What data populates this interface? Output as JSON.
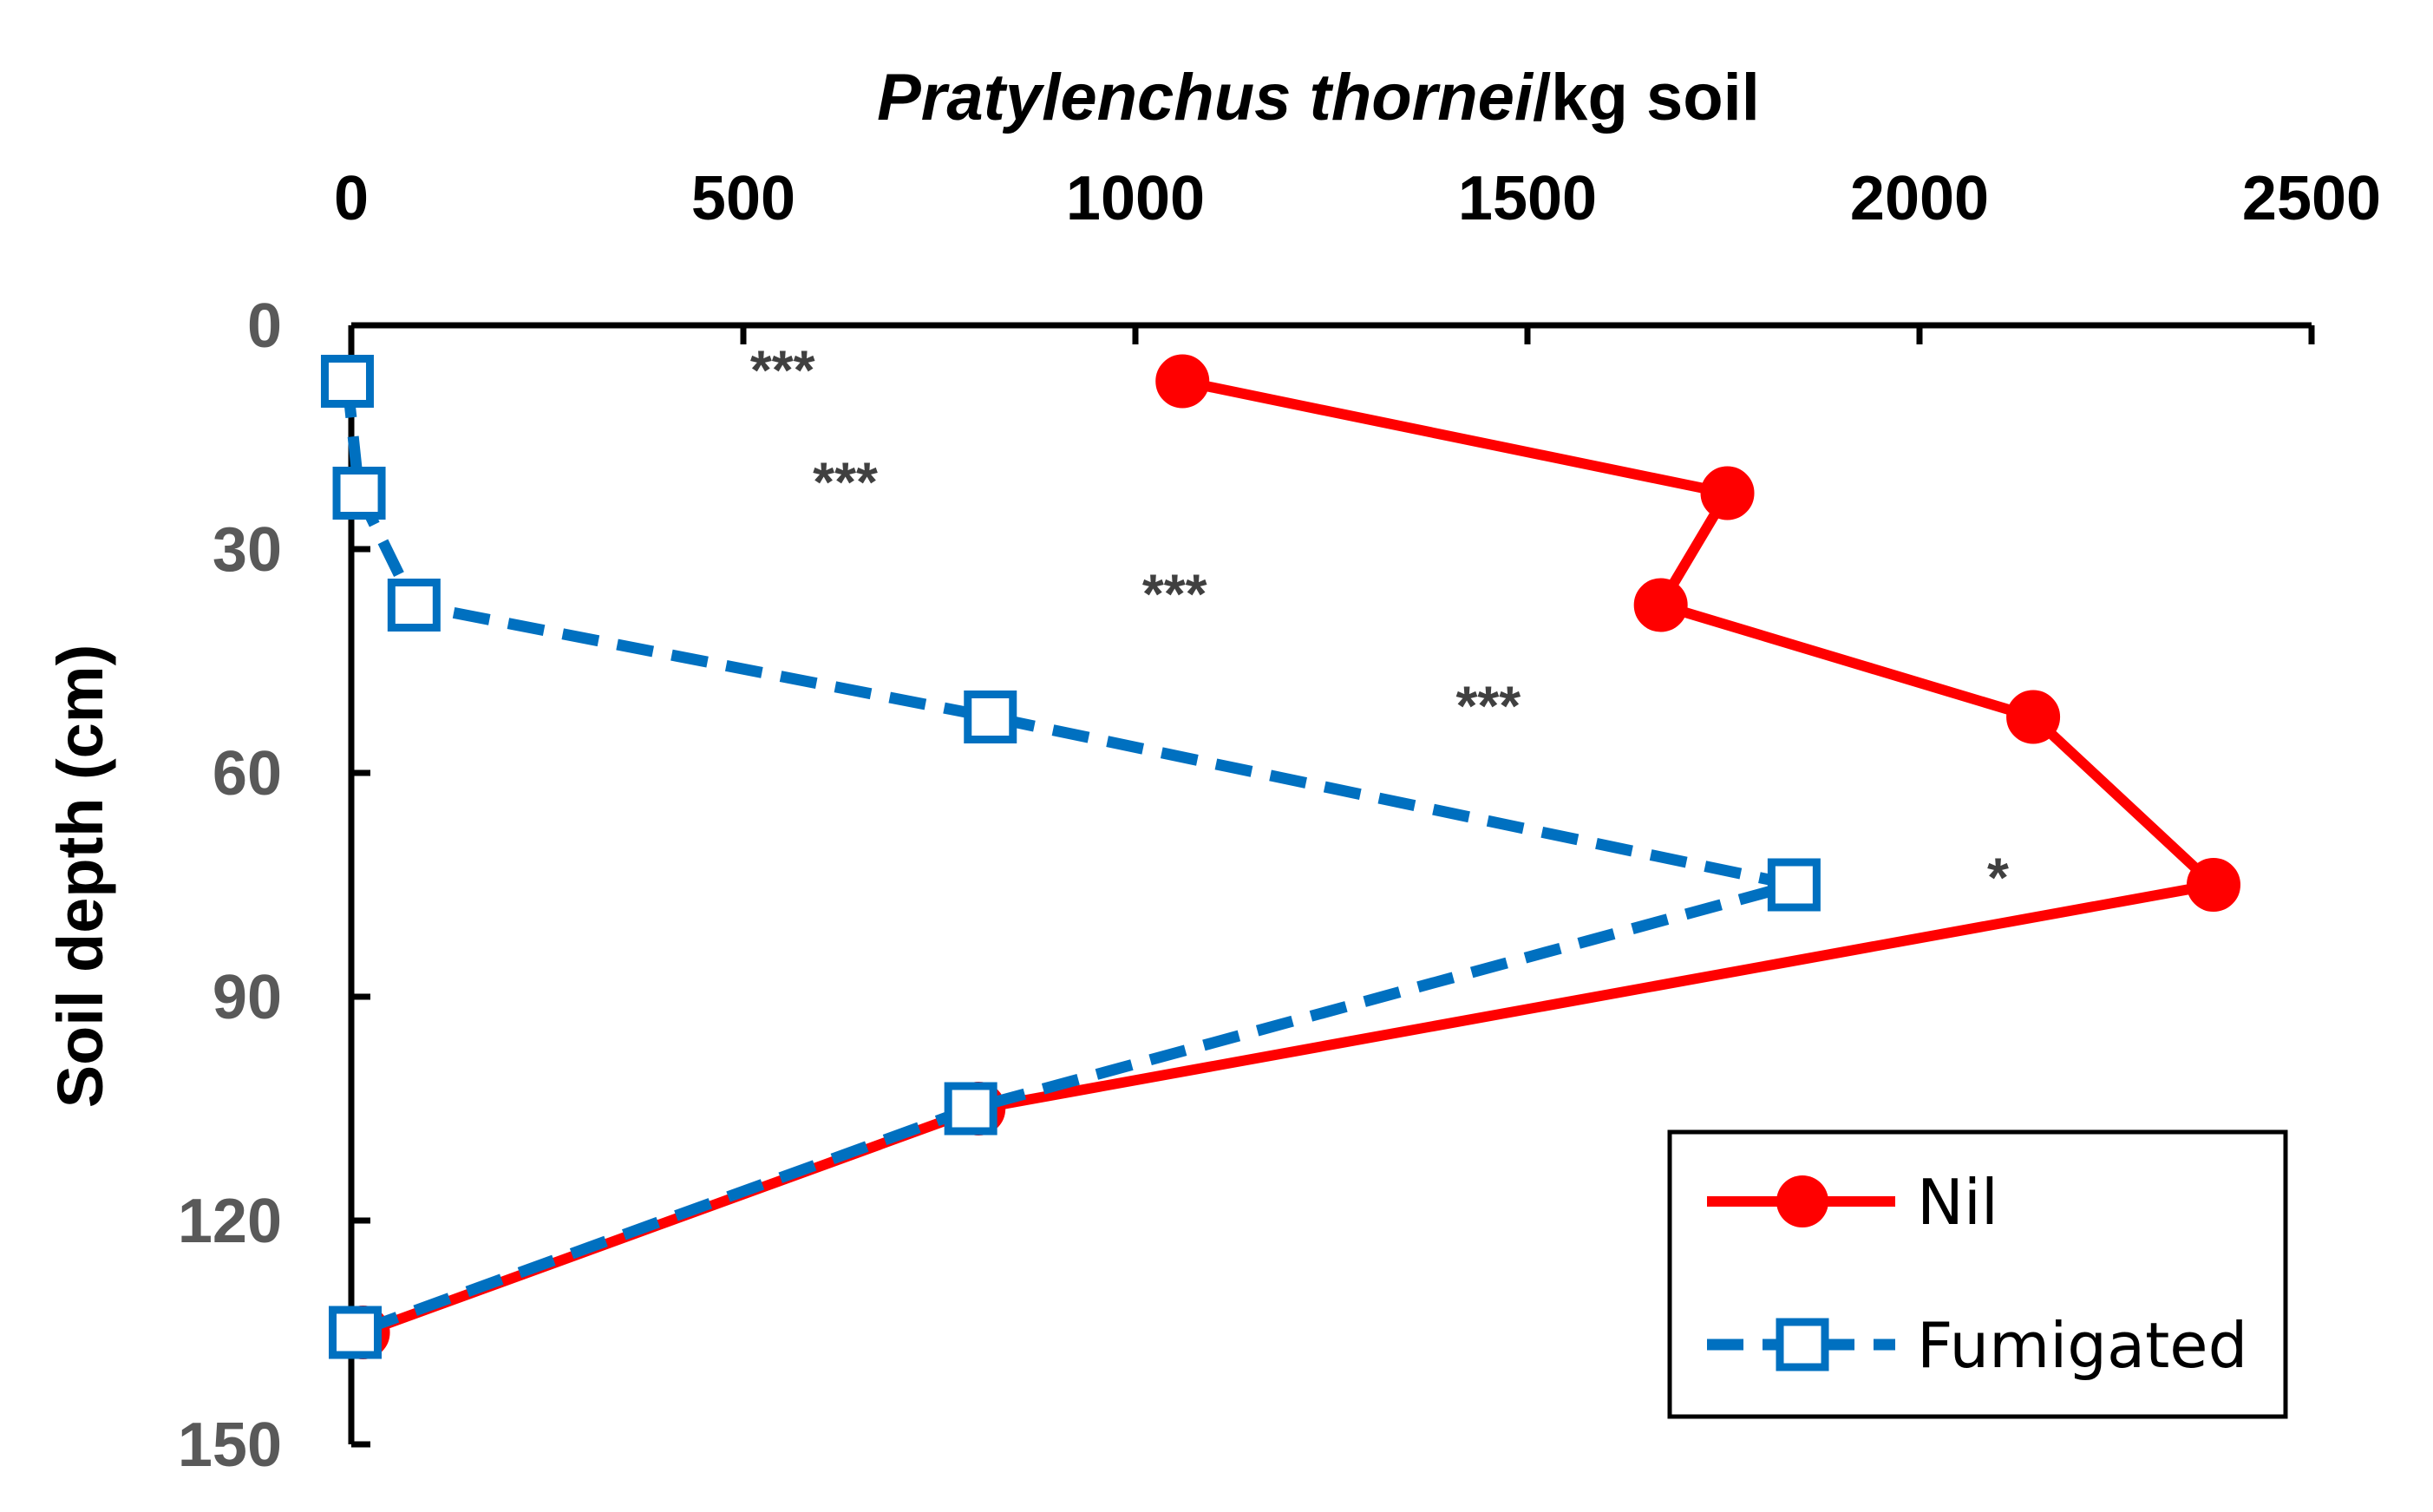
{
  "chart_data": {
    "type": "line",
    "title": {
      "italic": "Pratylenchus thornei",
      "rest": "/kg soil"
    },
    "ylabel": "Soil depth (cm)",
    "xlabel": "",
    "xlim": [
      0,
      2500
    ],
    "ylim": [
      0,
      150
    ],
    "y_inverted": true,
    "x_axis_position": "top",
    "x_ticks": [
      0,
      500,
      1000,
      1500,
      2000,
      2500
    ],
    "y_ticks": [
      0,
      30,
      60,
      90,
      120,
      150
    ],
    "grid": false,
    "legend_position": "bottom-right",
    "series": [
      {
        "name": "Nil",
        "color": "#FF0000",
        "line_style": "solid",
        "marker": "filled-circle",
        "points": [
          [
            1060,
            7.5
          ],
          [
            1755,
            22.5
          ],
          [
            1670,
            37.5
          ],
          [
            2145,
            52.5
          ],
          [
            2375,
            75
          ],
          [
            800,
            105
          ],
          [
            15,
            135
          ]
        ]
      },
      {
        "name": "Fumigated",
        "color": "#0070C0",
        "line_style": "dashed",
        "marker": "open-square",
        "points": [
          [
            -5,
            7.5
          ],
          [
            10,
            22.5
          ],
          [
            80,
            37.5
          ],
          [
            815,
            52.5
          ],
          [
            1840,
            75
          ],
          [
            790,
            105
          ],
          [
            5,
            135
          ]
        ]
      }
    ],
    "annotations": [
      {
        "text": "***",
        "x": 550,
        "y": 6
      },
      {
        "text": "***",
        "x": 630,
        "y": 21
      },
      {
        "text": "***",
        "x": 1050,
        "y": 36
      },
      {
        "text": "***",
        "x": 1450,
        "y": 51
      },
      {
        "text": "*",
        "x": 2100,
        "y": 74
      }
    ]
  }
}
